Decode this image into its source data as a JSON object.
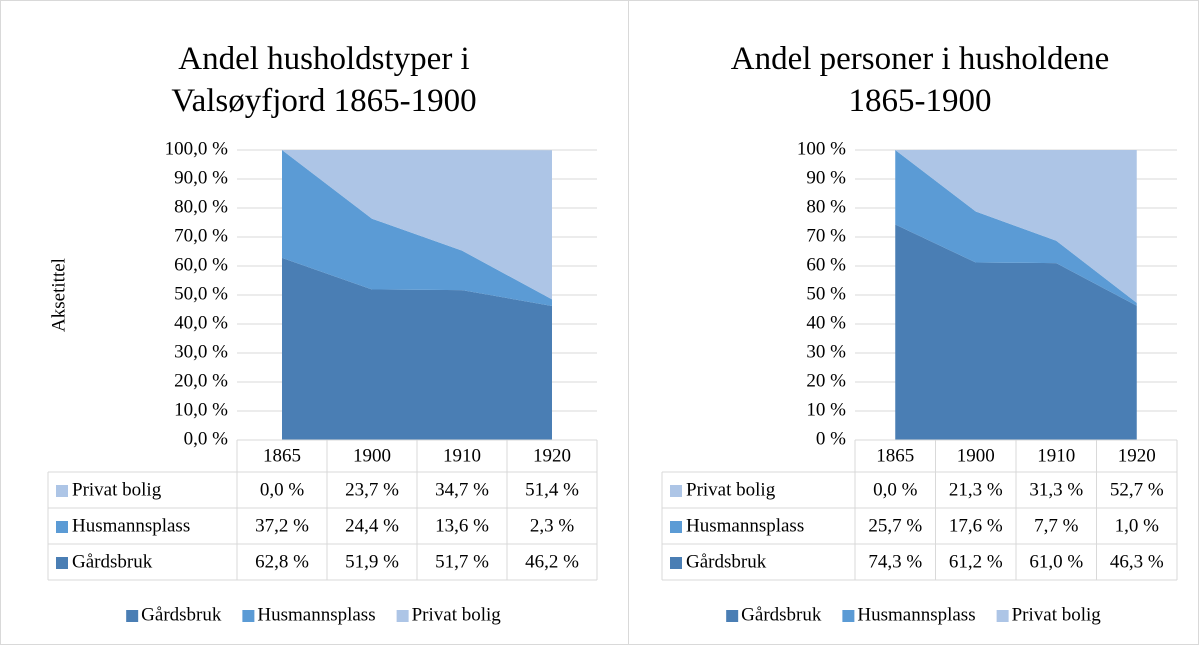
{
  "chart_data": [
    {
      "type": "area",
      "stacked": true,
      "title": "Andel husholdstyper i Valsøyfjord 1865-1900",
      "y_label": "Aksetittel",
      "categories": [
        "1865",
        "1900",
        "1910",
        "1920"
      ],
      "series": [
        {
          "name": "Gårdsbruk",
          "color": "#4a7eb4",
          "values": [
            62.8,
            51.9,
            51.7,
            46.2
          ],
          "value_labels": [
            "62,8 %",
            "51,9 %",
            "51,7 %",
            "46,2 %"
          ]
        },
        {
          "name": "Husmannsplass",
          "color": "#5b9bd5",
          "values": [
            37.2,
            24.4,
            13.6,
            2.3
          ],
          "value_labels": [
            "37,2 %",
            "24,4 %",
            "13,6 %",
            "2,3 %"
          ]
        },
        {
          "name": "Privat bolig",
          "color": "#adc5e6",
          "values": [
            0.0,
            23.7,
            34.7,
            51.4
          ],
          "value_labels": [
            "0,0 %",
            "23,7 %",
            "34,7 %",
            "51,4 %"
          ]
        }
      ],
      "ylim": [
        0,
        100
      ],
      "yticks": [
        {
          "value": 0,
          "label": "0,0 %"
        },
        {
          "value": 10,
          "label": "10,0 %"
        },
        {
          "value": 20,
          "label": "20,0 %"
        },
        {
          "value": 30,
          "label": "30,0 %"
        },
        {
          "value": 40,
          "label": "40,0 %"
        },
        {
          "value": 50,
          "label": "50,0 %"
        },
        {
          "value": 60,
          "label": "60,0 %"
        },
        {
          "value": 70,
          "label": "70,0 %"
        },
        {
          "value": 80,
          "label": "80,0 %"
        },
        {
          "value": 90,
          "label": "90,0 %"
        },
        {
          "value": 100,
          "label": "100,0 %"
        }
      ],
      "grid": true,
      "legend": "bottom",
      "data_table": true
    },
    {
      "type": "area",
      "stacked": true,
      "title": "Andel personer i husholdene 1865-1900",
      "categories": [
        "1865",
        "1900",
        "1910",
        "1920"
      ],
      "series": [
        {
          "name": "Gårdsbruk",
          "color": "#4a7eb4",
          "values": [
            74.3,
            61.2,
            61.0,
            46.3
          ],
          "value_labels": [
            "74,3 %",
            "61,2 %",
            "61,0 %",
            "46,3 %"
          ]
        },
        {
          "name": "Husmannsplass",
          "color": "#5b9bd5",
          "values": [
            25.7,
            17.6,
            7.7,
            1.0
          ],
          "value_labels": [
            "25,7 %",
            "17,6 %",
            "7,7 %",
            "1,0 %"
          ]
        },
        {
          "name": "Privat bolig",
          "color": "#adc5e6",
          "values": [
            0.0,
            21.3,
            31.3,
            52.7
          ],
          "value_labels": [
            "0,0 %",
            "21,3 %",
            "31,3 %",
            "52,7 %"
          ]
        }
      ],
      "ylim": [
        0,
        100
      ],
      "yticks": [
        {
          "value": 0,
          "label": "0 %"
        },
        {
          "value": 10,
          "label": "10 %"
        },
        {
          "value": 20,
          "label": "20 %"
        },
        {
          "value": 30,
          "label": "30 %"
        },
        {
          "value": 40,
          "label": "40 %"
        },
        {
          "value": 50,
          "label": "50 %"
        },
        {
          "value": 60,
          "label": "60 %"
        },
        {
          "value": 70,
          "label": "70 %"
        },
        {
          "value": 80,
          "label": "80 %"
        },
        {
          "value": 90,
          "label": "90 %"
        },
        {
          "value": 100,
          "label": "100 %"
        }
      ],
      "grid": true,
      "legend": "bottom",
      "data_table": true
    }
  ]
}
